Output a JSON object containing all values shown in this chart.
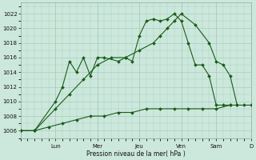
{
  "background_color": "#cce8dc",
  "grid_color": "#aaccbb",
  "line_color": "#1a5c1a",
  "ylabel": "Pression niveau de la mer( hPa )",
  "ylim": [
    1005,
    1023.5
  ],
  "yticks": [
    1006,
    1008,
    1010,
    1012,
    1014,
    1016,
    1018,
    1020,
    1022
  ],
  "xlim": [
    0,
    33
  ],
  "xtick_positions": [
    5,
    11,
    17,
    23,
    28,
    33
  ],
  "xtick_labels": [
    "Lun",
    "Mer",
    "Jeu",
    "Ven",
    "Sam",
    "D"
  ],
  "series": [
    {
      "name": "volatile_line",
      "x": [
        0,
        2,
        5,
        6,
        7,
        8,
        9,
        10,
        11,
        12,
        14,
        15,
        16,
        17,
        18,
        19,
        20,
        21,
        22,
        23,
        24,
        25,
        26,
        27,
        28,
        29,
        30
      ],
      "y": [
        1006,
        1006,
        1010,
        1012,
        1015.5,
        1014,
        1016,
        1013.5,
        1016,
        1016,
        1015.5,
        1016,
        1015.5,
        1019,
        1021,
        1021.3,
        1021,
        1021.3,
        1022,
        1021,
        1018,
        1015,
        1015,
        1013.5,
        1009.5,
        1009.5,
        1009.5
      ]
    },
    {
      "name": "smooth_line",
      "x": [
        0,
        2,
        5,
        7,
        9,
        11,
        13,
        15,
        17,
        19,
        20,
        21,
        22,
        23,
        25,
        27,
        28,
        29,
        30,
        31
      ],
      "y": [
        1006,
        1006,
        1009,
        1011,
        1013,
        1015,
        1016,
        1016,
        1017,
        1018,
        1019,
        1020,
        1021,
        1022,
        1020.5,
        1018,
        1015.5,
        1015,
        1013.5,
        1009.5
      ]
    },
    {
      "name": "flat_line",
      "x": [
        0,
        2,
        4,
        6,
        8,
        10,
        12,
        14,
        16,
        18,
        20,
        22,
        24,
        26,
        28,
        30,
        31,
        32,
        33
      ],
      "y": [
        1006,
        1006,
        1006.5,
        1007,
        1007.5,
        1008,
        1008,
        1008.5,
        1008.5,
        1009,
        1009,
        1009,
        1009,
        1009,
        1009,
        1009.5,
        1009.5,
        1009.5,
        1009.5
      ]
    }
  ]
}
